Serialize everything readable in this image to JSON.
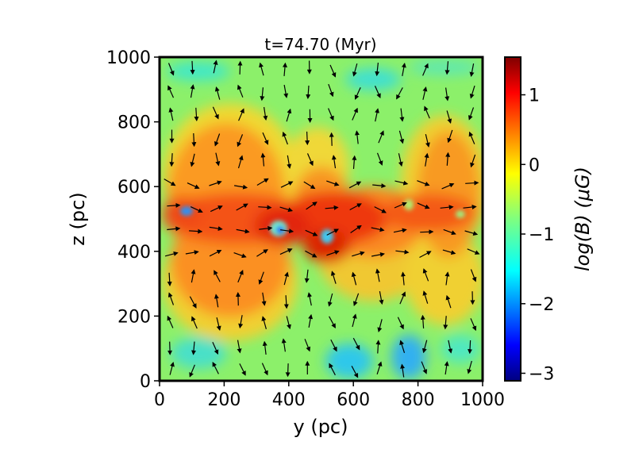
{
  "chart_data": {
    "type": "heatmap",
    "title": "t=74.70 (Myr)",
    "xlabel": "y (pc)",
    "ylabel": "z (pc)",
    "xlim": [
      0,
      1000
    ],
    "ylim": [
      0,
      1000
    ],
    "xticks": [
      "0",
      "200",
      "400",
      "600",
      "800",
      "1000"
    ],
    "yticks": [
      "0",
      "200",
      "400",
      "600",
      "800",
      "1000"
    ],
    "colorbar": {
      "label": "log(B) (μG)",
      "range": [
        -3.15,
        1.5
      ],
      "ticks": [
        "1",
        "0",
        "−1",
        "−2",
        "−3"
      ],
      "colormap": "jet"
    },
    "field_description": {
      "midplane_z": 500,
      "overlay": "magnetic field direction arrows"
    },
    "hot_bubbles_blue_cores": [
      {
        "y": 85,
        "z": 525
      },
      {
        "y": 370,
        "z": 470
      },
      {
        "y": 505,
        "z": 460
      },
      {
        "y": 930,
        "z": 520
      }
    ]
  }
}
